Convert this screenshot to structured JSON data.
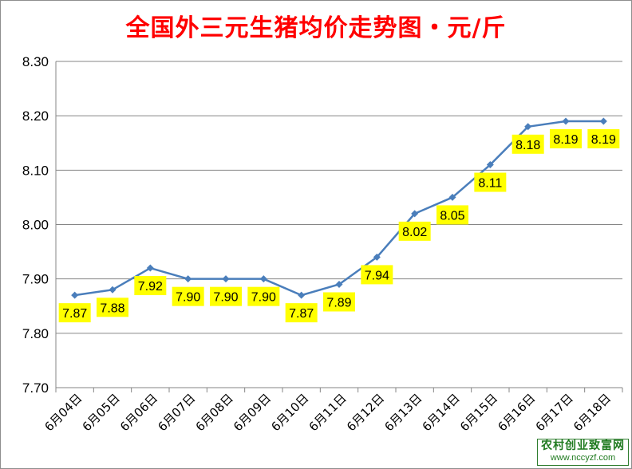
{
  "chart_data": {
    "type": "line",
    "title": "全国外三元生猪均价走势图・元/斤",
    "xlabel": "",
    "ylabel": "",
    "categories": [
      "6月04日",
      "6月05日",
      "6月06日",
      "6月07日",
      "6月08日",
      "6月09日",
      "6月10日",
      "6月11日",
      "6月12日",
      "6月13日",
      "6月14日",
      "6月15日",
      "6月16日",
      "6月17日",
      "6月18日"
    ],
    "series": [
      {
        "values": [
          7.87,
          7.88,
          7.92,
          7.9,
          7.9,
          7.9,
          7.87,
          7.89,
          7.94,
          8.02,
          8.05,
          8.11,
          8.18,
          8.19,
          8.19
        ],
        "labels": [
          "7.87",
          "7.88",
          "7.92",
          "7.90",
          "7.90",
          "7.90",
          "7.87",
          "7.89",
          "7.94",
          "8.02",
          "8.05",
          "8.11",
          "8.18",
          "8.19",
          "8.19"
        ]
      }
    ],
    "yticks": [
      "7.70",
      "7.80",
      "7.90",
      "8.00",
      "8.10",
      "8.20",
      "8.30"
    ],
    "ylim": [
      7.7,
      8.3
    ],
    "grid": true,
    "legend": "none",
    "colors": {
      "line": "#4a7ebb",
      "marker": "#4a7ebb",
      "label_bg": "#ffff00",
      "title": "#ff0000"
    }
  },
  "watermark": {
    "name": "农村创业致富网",
    "url": "www.nccyzf.com"
  }
}
